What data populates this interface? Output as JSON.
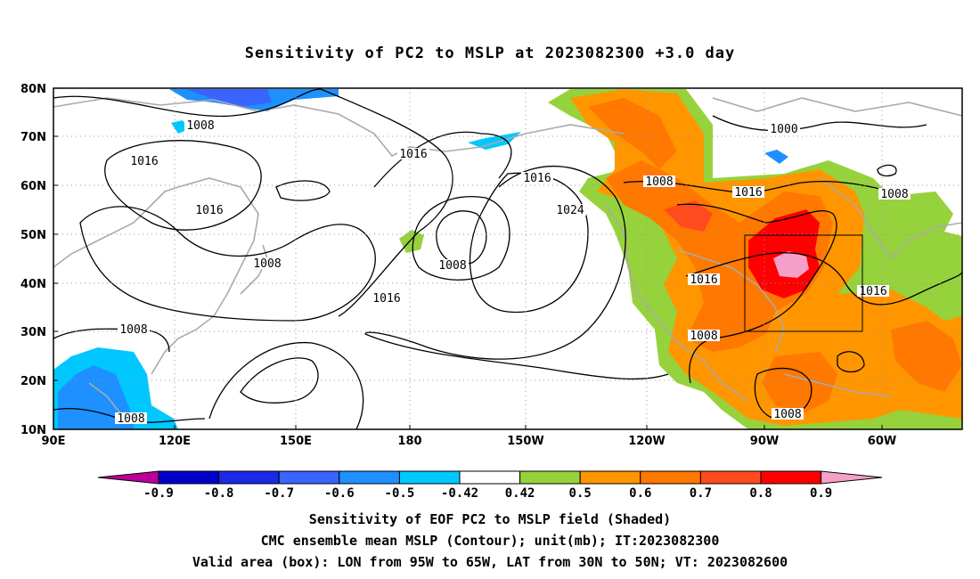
{
  "title": "Sensitivity of PC2 to MSLP at 2023082300 +3.0 day",
  "map": {
    "lat_labels": [
      "80N",
      "70N",
      "60N",
      "50N",
      "40N",
      "30N",
      "20N",
      "10N"
    ],
    "lon_labels": [
      "90E",
      "120E",
      "150E",
      "180",
      "150W",
      "120W",
      "90W",
      "60W"
    ],
    "valid_box": {
      "lon_from": "95W",
      "lon_to": "65W",
      "lat_from": "30N",
      "lat_to": "50N"
    },
    "contour_labels": [
      "1008",
      "1016",
      "1016",
      "1008",
      "1008",
      "1016",
      "1016",
      "1024",
      "1008",
      "1016",
      "1000",
      "1008",
      "1016",
      "1008",
      "1008",
      "1016",
      "1016",
      "1008",
      "1008"
    ],
    "colors": {
      "neg_0_9": "#bb0099",
      "neg_0_8": "#0000c8",
      "neg_0_7": "#1a2ae6",
      "neg_0_6": "#3a64ff",
      "neg_0_5": "#1e90ff",
      "neg_0_42": "#00c8ff",
      "pos_0_42": "#96d23c",
      "pos_0_5": "#ff9600",
      "pos_0_6": "#ff7800",
      "pos_0_7": "#ff4b1e",
      "pos_0_8": "#ff0000",
      "pos_0_9": "#f5a0c8",
      "coast": "#aaaaaa",
      "contour": "#000000"
    }
  },
  "colorbar": {
    "labels": [
      "-0.9",
      "-0.8",
      "-0.7",
      "-0.6",
      "-0.5",
      "-0.42",
      "0.42",
      "0.5",
      "0.6",
      "0.7",
      "0.8",
      "0.9"
    ]
  },
  "captions": {
    "line1": "Sensitivity of EOF PC2 to MSLP field (Shaded)",
    "line2": "CMC ensemble mean MSLP (Contour); unit(mb); IT:2023082300",
    "line3": "Valid area (box): LON from 95W to 65W, LAT from 30N to 50N; VT: 2023082600"
  }
}
